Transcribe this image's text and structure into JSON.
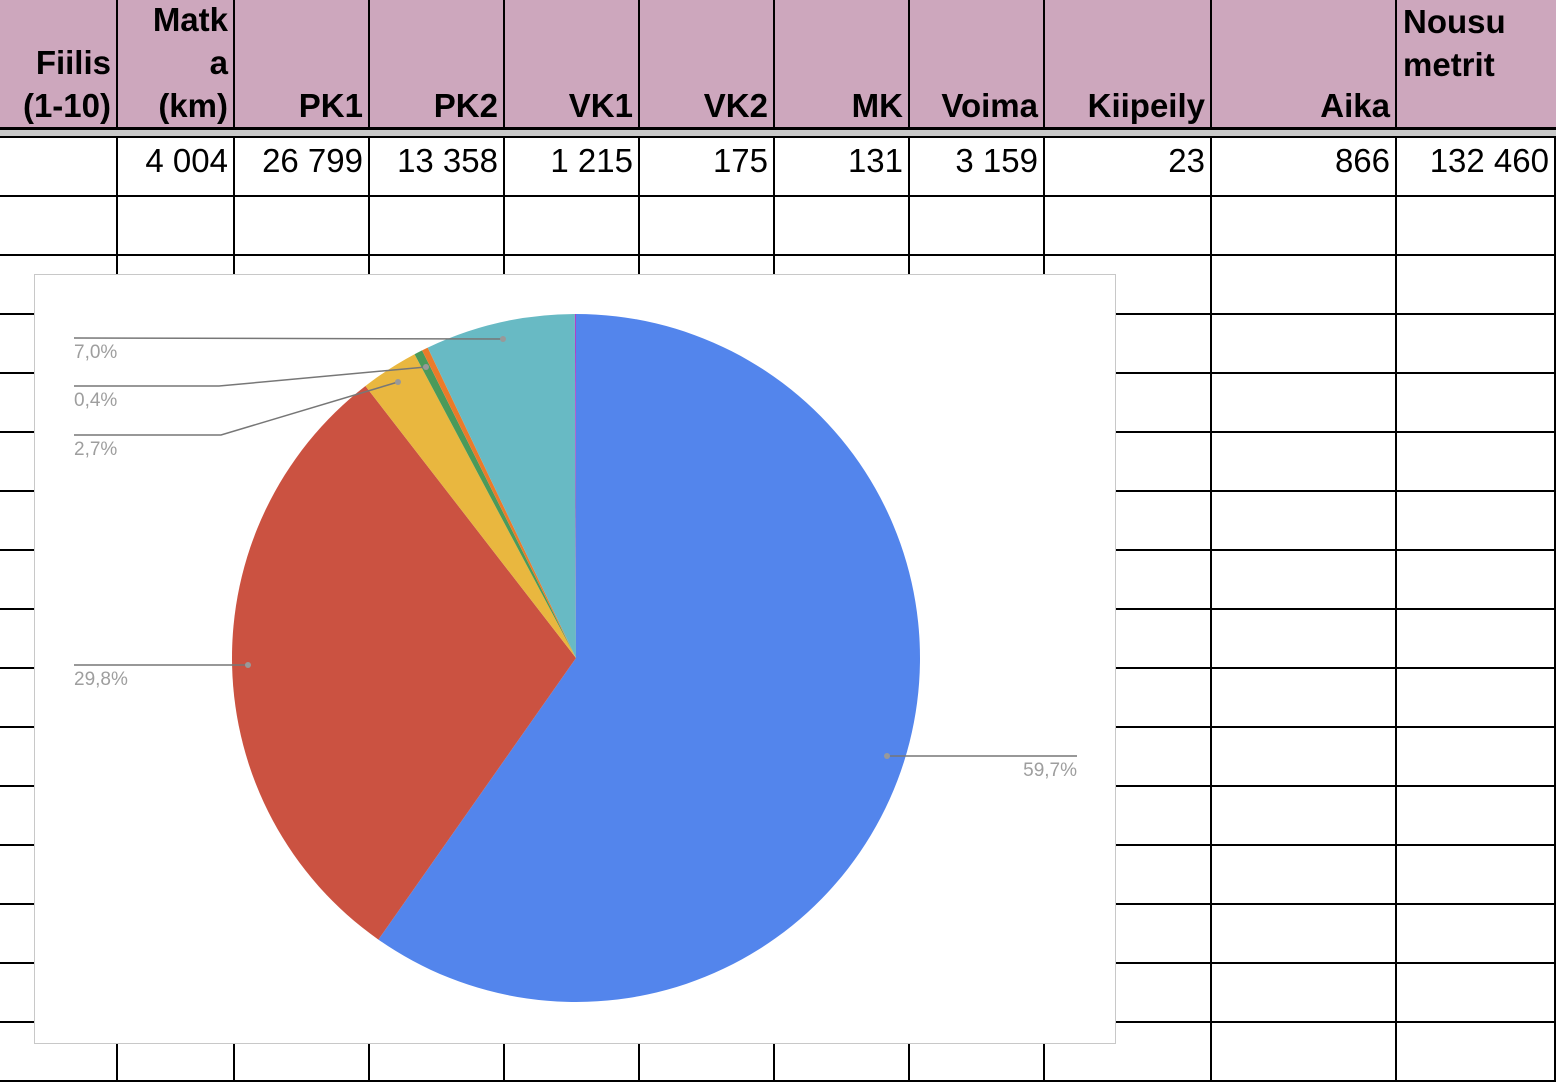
{
  "sheet": {
    "headers": [
      "Fiilis\n(1-10)",
      "Matk\na\n(km)",
      "PK1",
      "PK2",
      "VK1",
      "VK2",
      "MK",
      "Voima",
      "Kiipeily",
      "Aika",
      "Nousu\nmetrit"
    ],
    "header_color": "#cda7bd",
    "rows": [
      [
        "",
        "4 004",
        "26 799",
        "13 358",
        "1 215",
        "175",
        "131",
        "3 159",
        "23",
        "866",
        "132 460"
      ]
    ]
  },
  "chart_data": {
    "type": "pie",
    "categories": [
      "PK1",
      "PK2",
      "VK1",
      "VK2",
      "MK",
      "Voima",
      "Kiipeily"
    ],
    "values": [
      26799,
      13358,
      1215,
      175,
      131,
      3159,
      23
    ],
    "colors": [
      "#5385ec",
      "#cb5241",
      "#e9b73f",
      "#4a9a5a",
      "#ea7b2a",
      "#68bac4",
      "#b040c8"
    ],
    "slice_labels": [
      "59,7%",
      "29,8%",
      "2,7%",
      "0,4%",
      "",
      "7,0%",
      ""
    ],
    "start_angle": "top, clockwise",
    "legend": "none"
  }
}
